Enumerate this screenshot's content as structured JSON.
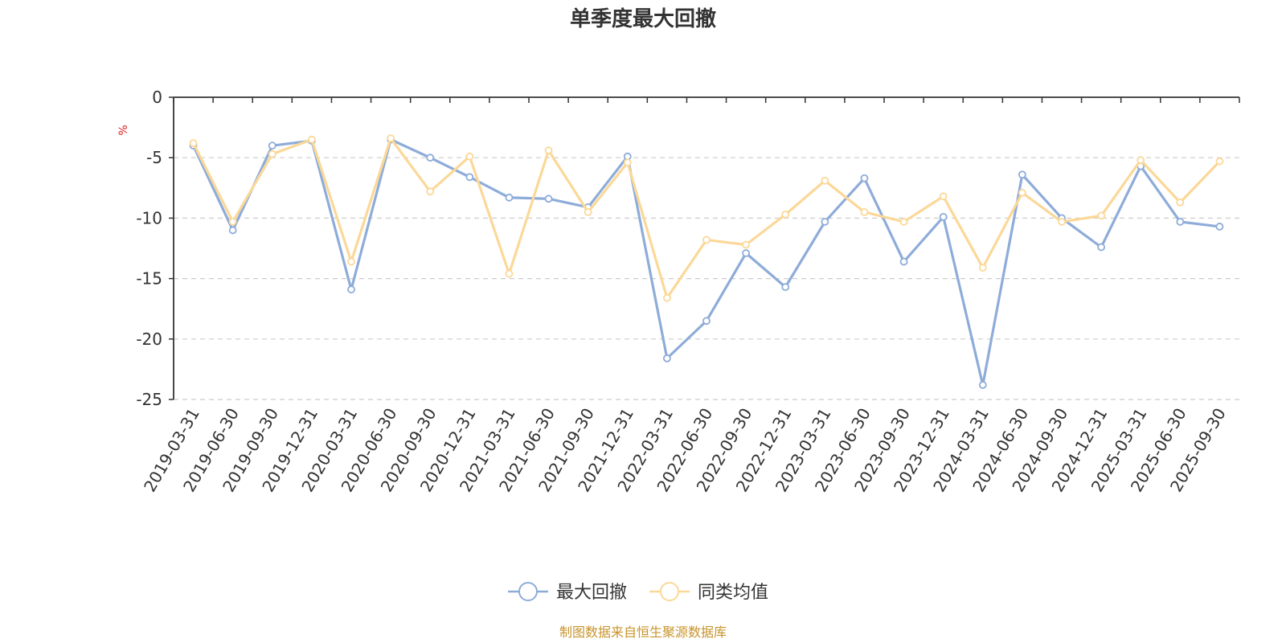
{
  "chart_data": {
    "type": "line",
    "title": "单季度最大回撤",
    "ylabel": "%",
    "ylim": [
      -25,
      0
    ],
    "yticks": [
      0,
      -5,
      -10,
      -15,
      -20,
      -25
    ],
    "grid": true,
    "legend_position": "bottom-center",
    "categories": [
      "2019-03-31",
      "2019-06-30",
      "2019-09-30",
      "2019-12-31",
      "2020-03-31",
      "2020-06-30",
      "2020-09-30",
      "2020-12-31",
      "2021-03-31",
      "2021-06-30",
      "2021-09-30",
      "2021-12-31",
      "2022-03-31",
      "2022-06-30",
      "2022-09-30",
      "2022-12-31",
      "2023-03-31",
      "2023-06-30",
      "2023-09-30",
      "2023-12-31",
      "2024-03-31",
      "2024-06-30",
      "2024-09-30",
      "2024-12-31",
      "2025-03-31",
      "2025-06-30",
      "2025-09-30"
    ],
    "series": [
      {
        "name": "最大回撤",
        "color": "#8eacd9",
        "values": [
          -4.0,
          -11.0,
          -4.0,
          -3.6,
          -15.9,
          -3.5,
          -5.0,
          -6.6,
          -8.3,
          -8.4,
          -9.1,
          -4.9,
          -21.6,
          -18.5,
          -12.9,
          -15.7,
          -10.3,
          -6.7,
          -13.6,
          -9.9,
          -23.8,
          -6.4,
          -10.0,
          -12.4,
          -5.7,
          -10.3,
          -10.7
        ]
      },
      {
        "name": "同类均值",
        "color": "#fbd898",
        "values": [
          -3.8,
          -10.3,
          -4.7,
          -3.5,
          -13.6,
          -3.4,
          -7.8,
          -4.9,
          -14.6,
          -4.4,
          -9.5,
          -5.4,
          -16.6,
          -11.8,
          -12.2,
          -9.7,
          -6.9,
          -9.5,
          -10.3,
          -8.2,
          -14.1,
          -7.9,
          -10.3,
          -9.8,
          -5.2,
          -8.7,
          -5.3
        ]
      }
    ]
  },
  "source_note": "制图数据来自恒生聚源数据库",
  "colors": {
    "axis": "#333333",
    "grid": "#cccccc",
    "unit": "#e02020",
    "source": "#c8942a"
  }
}
